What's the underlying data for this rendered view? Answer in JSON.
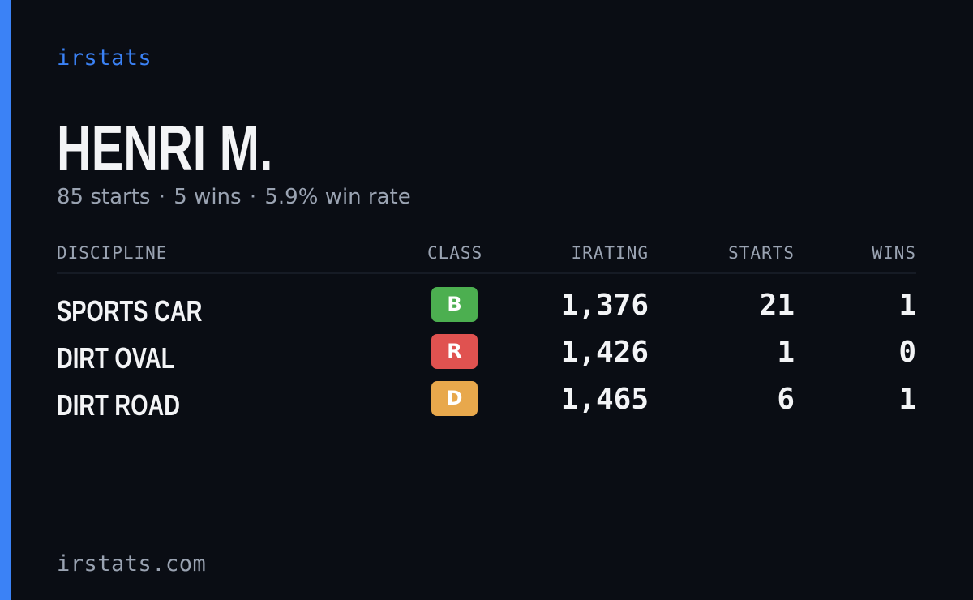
{
  "brand": {
    "name": "irstats",
    "domain": "irstats.com",
    "accent_color": "#3b82f6"
  },
  "player": {
    "name": "HENRI M.",
    "starts_text": "85 starts",
    "wins_text": "5 wins",
    "win_rate_text": "5.9% win rate",
    "separator": "·"
  },
  "table": {
    "headers": {
      "discipline": "DISCIPLINE",
      "class": "CLASS",
      "irating": "IRATING",
      "starts": "STARTS",
      "wins": "WINS"
    },
    "rows": [
      {
        "discipline": "SPORTS CAR",
        "class": "B",
        "class_color": "#4caf50",
        "irating": "1,376",
        "starts": "21",
        "wins": "1"
      },
      {
        "discipline": "DIRT OVAL",
        "class": "R",
        "class_color": "#e05250",
        "irating": "1,426",
        "starts": "1",
        "wins": "0"
      },
      {
        "discipline": "DIRT ROAD",
        "class": "D",
        "class_color": "#e8a84c",
        "irating": "1,465",
        "starts": "6",
        "wins": "1"
      }
    ]
  }
}
